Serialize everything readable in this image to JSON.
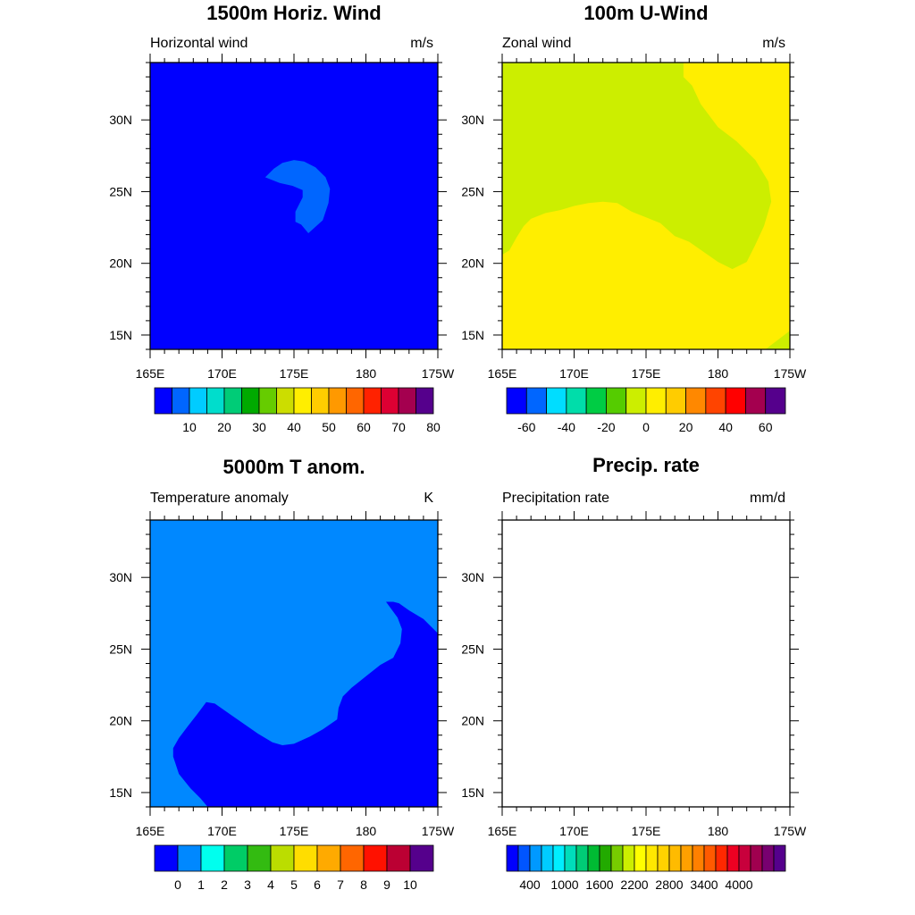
{
  "chart_data": [
    {
      "type": "contour map",
      "title": "1500m Horiz. Wind",
      "left_label": "Horizontal wind",
      "right_label": "m/s",
      "x_ticks": [
        "165E",
        "170E",
        "175E",
        "180",
        "175W"
      ],
      "y_ticks": [
        "15N",
        "20N",
        "25N",
        "30N"
      ],
      "xlim_deg_east": [
        165,
        185
      ],
      "ylim_deg_north": [
        14,
        34
      ],
      "background_level_color": "#0000ff",
      "filled_regions": [
        {
          "color": "#0066ff",
          "range_m_s": "5-10",
          "outline_lonlat": [
            [
              173.0,
              26.0
            ],
            [
              173.6,
              26.6
            ],
            [
              174.2,
              27.0
            ],
            [
              175.0,
              27.2
            ],
            [
              175.7,
              27.1
            ],
            [
              176.5,
              26.7
            ],
            [
              177.2,
              26.0
            ],
            [
              177.5,
              25.2
            ],
            [
              177.4,
              24.2
            ],
            [
              177.0,
              23.0
            ],
            [
              176.0,
              22.1
            ],
            [
              175.5,
              22.7
            ],
            [
              175.1,
              22.9
            ],
            [
              175.1,
              23.6
            ],
            [
              175.6,
              24.6
            ],
            [
              175.6,
              25.1
            ],
            [
              174.9,
              25.4
            ],
            [
              174.0,
              25.6
            ]
          ]
        }
      ],
      "colorbar": {
        "colors": [
          "#0000ff",
          "#0066ff",
          "#00ccff",
          "#00ddcc",
          "#00cc77",
          "#00aa00",
          "#66cc00",
          "#ccdd00",
          "#ffee00",
          "#ffcc00",
          "#ff9900",
          "#ff6600",
          "#ff2200",
          "#dd0033",
          "#a4004f",
          "#55008c"
        ],
        "labels": [
          "10",
          "20",
          "30",
          "40",
          "50",
          "60",
          "70",
          "80"
        ],
        "label_boundaries": [
          2,
          4,
          6,
          8,
          10,
          12,
          14,
          16
        ]
      }
    },
    {
      "type": "contour map",
      "title": "100m U-Wind",
      "left_label": "Zonal wind",
      "right_label": "m/s",
      "x_ticks": [
        "165E",
        "170E",
        "175E",
        "180",
        "175W"
      ],
      "y_ticks": [
        "15N",
        "20N",
        "25N",
        "30N"
      ],
      "xlim_deg_east": [
        165,
        185
      ],
      "ylim_deg_north": [
        14,
        34
      ],
      "background_level_color": "#ffee00",
      "filled_regions": [
        {
          "color": "#ccee00",
          "range_m_s": "-10-0",
          "outline_lonlat": [
            [
              165,
              20.6
            ],
            [
              165.5,
              20.9
            ],
            [
              166.0,
              21.8
            ],
            [
              166.5,
              22.6
            ],
            [
              167.0,
              23.1
            ],
            [
              168.0,
              23.5
            ],
            [
              169.0,
              23.7
            ],
            [
              170.0,
              24.0
            ],
            [
              171.0,
              24.2
            ],
            [
              172.0,
              24.3
            ],
            [
              173.0,
              24.2
            ],
            [
              174.0,
              23.6
            ],
            [
              175.0,
              23.2
            ],
            [
              176.0,
              22.8
            ],
            [
              177.0,
              21.9
            ],
            [
              178.0,
              21.5
            ],
            [
              179.0,
              20.8
            ],
            [
              180.0,
              20.1
            ],
            [
              181.0,
              19.6
            ],
            [
              182.0,
              20.1
            ],
            [
              182.6,
              21.3
            ],
            [
              183.2,
              22.6
            ],
            [
              183.7,
              24.3
            ],
            [
              183.5,
              25.7
            ],
            [
              182.6,
              27.2
            ],
            [
              181.3,
              28.5
            ],
            [
              180.0,
              29.5
            ],
            [
              178.8,
              31.1
            ],
            [
              178.2,
              32.4
            ],
            [
              177.6,
              33.0
            ],
            [
              177.6,
              34
            ],
            [
              165,
              34
            ]
          ]
        },
        {
          "color": "#ccee00",
          "range_m_s": "-10-0",
          "outline_lonlat": [
            [
              183.3,
              14
            ],
            [
              185,
              15.3
            ],
            [
              185,
              14
            ]
          ]
        }
      ],
      "colorbar": {
        "colors": [
          "#0000ff",
          "#0066ff",
          "#00ddff",
          "#00ddaa",
          "#00cc44",
          "#55cc00",
          "#ccee00",
          "#ffee00",
          "#ffcc00",
          "#ff8800",
          "#ff4400",
          "#ff0000",
          "#a4004f",
          "#55008c"
        ],
        "labels": [
          "-60",
          "-40",
          "-20",
          "0",
          "20",
          "40",
          "60"
        ],
        "label_boundaries": [
          1,
          3,
          5,
          7,
          9,
          11,
          13
        ]
      }
    },
    {
      "type": "contour map",
      "title": "5000m T anom.",
      "left_label": "Temperature anomaly",
      "right_label": "K",
      "x_ticks": [
        "165E",
        "170E",
        "175E",
        "180",
        "175W"
      ],
      "y_ticks": [
        "15N",
        "20N",
        "25N",
        "30N"
      ],
      "xlim_deg_east": [
        165,
        185
      ],
      "ylim_deg_north": [
        14,
        34
      ],
      "background_level_color": "#0088ff",
      "filled_regions": [
        {
          "color": "#0000ff",
          "range_K": "below 0",
          "outline_lonlat": [
            [
              185,
              26.1
            ],
            [
              184.0,
              27.1
            ],
            [
              183.0,
              27.7
            ],
            [
              182.3,
              28.2
            ],
            [
              181.9,
              28.3
            ],
            [
              181.4,
              28.3
            ],
            [
              182.2,
              27.2
            ],
            [
              182.5,
              26.4
            ],
            [
              182.4,
              25.4
            ],
            [
              181.9,
              24.4
            ],
            [
              181.0,
              23.9
            ],
            [
              180.0,
              23.1
            ],
            [
              179.0,
              22.3
            ],
            [
              178.4,
              21.7
            ],
            [
              178.1,
              20.9
            ],
            [
              178.0,
              20.1
            ],
            [
              177.0,
              19.4
            ],
            [
              176.1,
              18.9
            ],
            [
              175.0,
              18.4
            ],
            [
              174.2,
              18.3
            ],
            [
              173.5,
              18.5
            ],
            [
              172.5,
              19.1
            ],
            [
              171.5,
              19.8
            ],
            [
              170.5,
              20.5
            ],
            [
              169.5,
              21.2
            ],
            [
              168.9,
              21.3
            ],
            [
              168.3,
              20.5
            ],
            [
              167.6,
              19.6
            ],
            [
              167.0,
              18.8
            ],
            [
              166.6,
              18.1
            ],
            [
              166.6,
              17.5
            ],
            [
              167.0,
              16.3
            ],
            [
              167.8,
              15.3
            ],
            [
              168.5,
              14.6
            ],
            [
              169.0,
              14
            ],
            [
              185,
              14
            ]
          ]
        }
      ],
      "colorbar": {
        "colors": [
          "#0000ff",
          "#0088ff",
          "#00ffee",
          "#00cc66",
          "#33bb11",
          "#bbdd00",
          "#ffdd00",
          "#ffaa00",
          "#ff6600",
          "#ff1100",
          "#bb0033",
          "#55008c"
        ],
        "labels": [
          "0",
          "1",
          "2",
          "3",
          "4",
          "5",
          "6",
          "7",
          "8",
          "9",
          "10"
        ],
        "label_boundaries": [
          1,
          2,
          3,
          4,
          5,
          6,
          7,
          8,
          9,
          10,
          11
        ]
      }
    },
    {
      "type": "contour map",
      "title": "Precip. rate",
      "left_label": "Precipitation rate",
      "right_label": "mm/d",
      "x_ticks": [
        "165E",
        "170E",
        "175E",
        "180",
        "175W"
      ],
      "y_ticks": [
        "15N",
        "20N",
        "25N",
        "30N"
      ],
      "xlim_deg_east": [
        165,
        185
      ],
      "ylim_deg_north": [
        14,
        34
      ],
      "background_level_color": "#ffffff",
      "filled_regions": [],
      "colorbar": {
        "colors": [
          "#0000ff",
          "#0055ff",
          "#0099ff",
          "#00ccff",
          "#00eeff",
          "#00ddbb",
          "#00cc77",
          "#00bb33",
          "#22aa00",
          "#77cc00",
          "#ccee00",
          "#ffff00",
          "#ffe800",
          "#ffd200",
          "#ffbb00",
          "#ffa000",
          "#ff8000",
          "#ff5a00",
          "#ff2800",
          "#ee0022",
          "#c8003c",
          "#a0004f",
          "#780070",
          "#55008c"
        ],
        "labels": [
          "400",
          "1000",
          "1600",
          "2200",
          "2800",
          "3400",
          "4000"
        ],
        "label_boundaries": [
          2,
          5,
          8,
          11,
          14,
          17,
          20
        ]
      }
    }
  ]
}
